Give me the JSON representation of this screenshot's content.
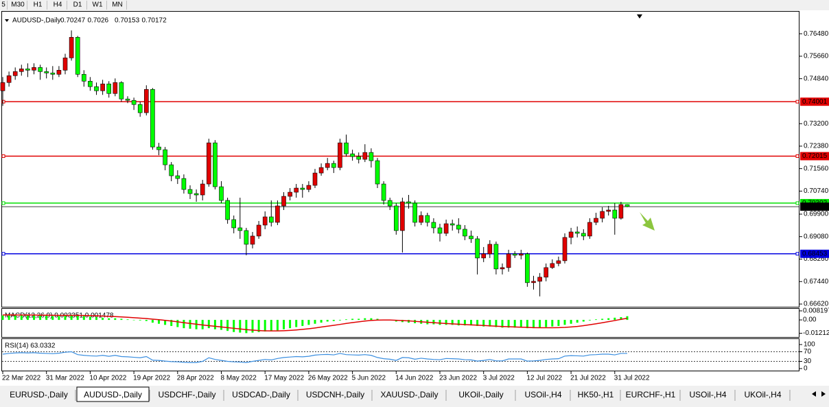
{
  "chart_data": {
    "type": "candlestick",
    "toolbar": [
      "5",
      "M30",
      "H1",
      "H4",
      "D1",
      "W1",
      "MN"
    ],
    "symbol": "AUDUSD-,Daily",
    "up_color": "#e00000",
    "down_color": "#00ff00",
    "ylim": [
      0.6652,
      0.7721
    ],
    "yticks": [
      {
        "value": 0.7648,
        "label": "0.76480"
      },
      {
        "value": 0.7566,
        "label": "0.75660"
      },
      {
        "value": 0.7484,
        "label": "0.74840"
      },
      {
        "value": 0.732,
        "label": "0.73200"
      },
      {
        "value": 0.7238,
        "label": "0.72380"
      },
      {
        "value": 0.7156,
        "label": "0.71560"
      },
      {
        "value": 0.7074,
        "label": "0.70740"
      },
      {
        "value": 0.699,
        "label": "0.69900"
      },
      {
        "value": 0.6908,
        "label": "0.69080"
      },
      {
        "value": 0.6826,
        "label": "0.68260"
      },
      {
        "value": 0.6744,
        "label": "0.67440"
      },
      {
        "value": 0.6662,
        "label": "0.66620"
      }
    ],
    "levels": [
      {
        "value": 0.74001,
        "color": "#e00000"
      },
      {
        "value": 0.72015,
        "color": "#e00000"
      },
      {
        "value": 0.70302,
        "color": "#00e000"
      },
      {
        "value": 0.68453,
        "color": "#0000e0"
      }
    ],
    "categories": [
      "22 Mar 2022",
      null,
      null,
      null,
      null,
      null,
      null,
      "31 Mar 2022",
      null,
      null,
      null,
      null,
      null,
      null,
      "10 Apr 2022",
      null,
      null,
      null,
      null,
      null,
      null,
      "19 Apr 2022",
      null,
      null,
      null,
      null,
      null,
      null,
      "28 Apr 2022",
      null,
      null,
      null,
      null,
      null,
      null,
      "8 May 2022",
      null,
      null,
      null,
      null,
      null,
      null,
      "17 May 2022",
      null,
      null,
      null,
      null,
      null,
      null,
      "26 May 2022",
      null,
      null,
      null,
      null,
      null,
      null,
      "5 Jun 2022",
      null,
      null,
      null,
      null,
      null,
      null,
      "14 Jun 2022",
      null,
      null,
      null,
      null,
      null,
      null,
      "23 Jun 2022",
      null,
      null,
      null,
      null,
      null,
      null,
      "3 Jul 2022",
      null,
      null,
      null,
      null,
      null,
      null,
      "12 Jul 2022",
      null,
      null,
      null,
      null,
      null,
      null,
      "21 Jul 2022",
      null,
      null,
      null,
      null,
      null,
      null,
      "31 Jul 2022",
      null,
      null
    ],
    "ohlc": [
      [
        0.744,
        0.749,
        0.7385,
        0.747
      ],
      [
        0.747,
        0.751,
        0.7455,
        0.7495
      ],
      [
        0.7495,
        0.7525,
        0.748,
        0.751
      ],
      [
        0.751,
        0.7535,
        0.7495,
        0.752
      ],
      [
        0.752,
        0.754,
        0.749,
        0.7515
      ],
      [
        0.7515,
        0.754,
        0.75,
        0.7525
      ],
      [
        0.7525,
        0.7535,
        0.748,
        0.751
      ],
      [
        0.751,
        0.7525,
        0.7485,
        0.7505
      ],
      [
        0.7505,
        0.753,
        0.748,
        0.75
      ],
      [
        0.75,
        0.753,
        0.749,
        0.7515
      ],
      [
        0.7515,
        0.7575,
        0.75,
        0.756
      ],
      [
        0.756,
        0.766,
        0.755,
        0.7635
      ],
      [
        0.7635,
        0.764,
        0.749,
        0.75
      ],
      [
        0.75,
        0.7515,
        0.7455,
        0.7475
      ],
      [
        0.7475,
        0.749,
        0.744,
        0.7455
      ],
      [
        0.7455,
        0.747,
        0.7425,
        0.744
      ],
      [
        0.744,
        0.748,
        0.7425,
        0.7465
      ],
      [
        0.7465,
        0.7475,
        0.7415,
        0.743
      ],
      [
        0.743,
        0.7485,
        0.742,
        0.747
      ],
      [
        0.747,
        0.7475,
        0.74,
        0.741
      ],
      [
        0.741,
        0.742,
        0.7395,
        0.7405
      ],
      [
        0.7405,
        0.7415,
        0.737,
        0.739
      ],
      [
        0.739,
        0.74,
        0.7345,
        0.736
      ],
      [
        0.736,
        0.746,
        0.735,
        0.7445
      ],
      [
        0.7445,
        0.745,
        0.7225,
        0.7235
      ],
      [
        0.7235,
        0.725,
        0.7205,
        0.7225
      ],
      [
        0.7225,
        0.7235,
        0.715,
        0.717
      ],
      [
        0.717,
        0.718,
        0.711,
        0.713
      ],
      [
        0.713,
        0.715,
        0.71,
        0.712
      ],
      [
        0.712,
        0.7135,
        0.7065,
        0.708
      ],
      [
        0.708,
        0.7095,
        0.7045,
        0.7065
      ],
      [
        0.7065,
        0.708,
        0.7035,
        0.706
      ],
      [
        0.706,
        0.7115,
        0.704,
        0.71
      ],
      [
        0.71,
        0.7265,
        0.709,
        0.725
      ],
      [
        0.725,
        0.726,
        0.708,
        0.709
      ],
      [
        0.709,
        0.711,
        0.703,
        0.704
      ],
      [
        0.704,
        0.705,
        0.6955,
        0.697
      ],
      [
        0.697,
        0.6985,
        0.692,
        0.694
      ],
      [
        0.694,
        0.705,
        0.69,
        0.693
      ],
      [
        0.693,
        0.694,
        0.684,
        0.688
      ],
      [
        0.688,
        0.6925,
        0.6865,
        0.691
      ],
      [
        0.691,
        0.6965,
        0.69,
        0.695
      ],
      [
        0.695,
        0.7,
        0.6935,
        0.698
      ],
      [
        0.698,
        0.704,
        0.6945,
        0.696
      ],
      [
        0.696,
        0.704,
        0.695,
        0.702
      ],
      [
        0.702,
        0.707,
        0.7005,
        0.7055
      ],
      [
        0.7055,
        0.7085,
        0.704,
        0.707
      ],
      [
        0.707,
        0.71,
        0.705,
        0.7085
      ],
      [
        0.7085,
        0.71,
        0.705,
        0.708
      ],
      [
        0.708,
        0.711,
        0.707,
        0.7095
      ],
      [
        0.7095,
        0.7155,
        0.7085,
        0.714
      ],
      [
        0.714,
        0.7175,
        0.713,
        0.716
      ],
      [
        0.716,
        0.7195,
        0.715,
        0.7175
      ],
      [
        0.7175,
        0.7185,
        0.714,
        0.716
      ],
      [
        0.716,
        0.7265,
        0.715,
        0.725
      ],
      [
        0.725,
        0.728,
        0.72,
        0.721
      ],
      [
        0.721,
        0.7225,
        0.7185,
        0.72
      ],
      [
        0.72,
        0.7215,
        0.7175,
        0.719
      ],
      [
        0.719,
        0.7245,
        0.718,
        0.7215
      ],
      [
        0.7215,
        0.723,
        0.716,
        0.7185
      ],
      [
        0.7185,
        0.7195,
        0.7085,
        0.71
      ],
      [
        0.71,
        0.711,
        0.7025,
        0.704
      ],
      [
        0.704,
        0.705,
        0.7005,
        0.702
      ],
      [
        0.702,
        0.703,
        0.6915,
        0.693
      ],
      [
        0.693,
        0.705,
        0.685,
        0.7035
      ],
      [
        0.7035,
        0.706,
        0.701,
        0.703
      ],
      [
        0.703,
        0.704,
        0.6945,
        0.696
      ],
      [
        0.696,
        0.7,
        0.695,
        0.6985
      ],
      [
        0.6985,
        0.6995,
        0.6945,
        0.696
      ],
      [
        0.696,
        0.6975,
        0.692,
        0.694
      ],
      [
        0.694,
        0.6955,
        0.689,
        0.692
      ],
      [
        0.692,
        0.697,
        0.691,
        0.6955
      ],
      [
        0.6955,
        0.697,
        0.693,
        0.695
      ],
      [
        0.695,
        0.6975,
        0.692,
        0.6935
      ],
      [
        0.6935,
        0.695,
        0.6895,
        0.691
      ],
      [
        0.691,
        0.693,
        0.6885,
        0.69
      ],
      [
        0.69,
        0.691,
        0.677,
        0.683
      ],
      [
        0.683,
        0.687,
        0.6815,
        0.6845
      ],
      [
        0.6845,
        0.6895,
        0.683,
        0.688
      ],
      [
        0.688,
        0.689,
        0.677,
        0.679
      ],
      [
        0.679,
        0.681,
        0.677,
        0.6795
      ],
      [
        0.6795,
        0.686,
        0.678,
        0.6845
      ],
      [
        0.6845,
        0.6855,
        0.683,
        0.684
      ],
      [
        0.684,
        0.686,
        0.6825,
        0.6845
      ],
      [
        0.6845,
        0.685,
        0.6725,
        0.674
      ],
      [
        0.674,
        0.6765,
        0.6715,
        0.6745
      ],
      [
        0.6745,
        0.6775,
        0.669,
        0.676
      ],
      [
        0.676,
        0.681,
        0.6745,
        0.6795
      ],
      [
        0.6795,
        0.6825,
        0.679,
        0.681
      ],
      [
        0.681,
        0.6835,
        0.68,
        0.682
      ],
      [
        0.682,
        0.692,
        0.681,
        0.6905
      ],
      [
        0.6905,
        0.694,
        0.688,
        0.6925
      ],
      [
        0.6925,
        0.6945,
        0.6905,
        0.692
      ],
      [
        0.692,
        0.6935,
        0.6895,
        0.691
      ],
      [
        0.691,
        0.6975,
        0.69,
        0.696
      ],
      [
        0.696,
        0.6995,
        0.695,
        0.6975
      ],
      [
        0.6975,
        0.7015,
        0.696,
        0.7
      ],
      [
        0.7,
        0.702,
        0.6985,
        0.7005
      ],
      [
        0.7005,
        0.703,
        0.6915,
        0.6975
      ],
      [
        0.6975,
        0.7035,
        0.697,
        0.7025
      ],
      [
        0.70247,
        0.7026,
        0.70153,
        0.70172
      ]
    ],
    "macd": {
      "label": "MACD(12,26,9) 0.003351 0.001478",
      "hist_color": "#00ff00",
      "signal_color": "#e00000",
      "ylim": [
        -0.0155,
        0.0094
      ],
      "yticks": [
        0.008197,
        {
          "value": 0,
          "label": "0.00"
        },
        -0.012121
      ],
      "hist": [
        0.004,
        0.004,
        0.0045,
        0.0045,
        0.0045,
        0.0045,
        0.004,
        0.004,
        0.0035,
        0.0035,
        0.004,
        0.0045,
        0.004,
        0.0035,
        0.003,
        0.0025,
        0.002,
        0.0015,
        0.0015,
        0.001,
        0.0005,
        0,
        -0.0005,
        -0.001,
        -0.0025,
        -0.0035,
        -0.0045,
        -0.0055,
        -0.0065,
        -0.0075,
        -0.008,
        -0.0085,
        -0.0085,
        -0.0075,
        -0.0085,
        -0.009,
        -0.01,
        -0.011,
        -0.0115,
        -0.012,
        -0.0115,
        -0.011,
        -0.0105,
        -0.01,
        -0.0095,
        -0.0085,
        -0.0075,
        -0.0065,
        -0.0055,
        -0.0045,
        -0.0035,
        -0.0025,
        -0.0015,
        -0.001,
        -0.0005,
        0.0005,
        0.001,
        0.001,
        0.0015,
        0.0015,
        0.001,
        0,
        -0.0005,
        -0.0015,
        -0.002,
        -0.0025,
        -0.003,
        -0.0035,
        -0.004,
        -0.004,
        -0.0045,
        -0.0045,
        -0.0045,
        -0.005,
        -0.005,
        -0.005,
        -0.0055,
        -0.006,
        -0.006,
        -0.0065,
        -0.007,
        -0.007,
        -0.007,
        -0.007,
        -0.0075,
        -0.0075,
        -0.007,
        -0.0065,
        -0.006,
        -0.0055,
        -0.0045,
        -0.0035,
        -0.0025,
        -0.0015,
        -0.0005,
        0.0005,
        0.001,
        0.0015,
        0.002,
        0.0025,
        0.003351
      ],
      "signal": [
        0.0045,
        0.0045,
        0.0044,
        0.0044,
        0.0044,
        0.0044,
        0.0043,
        0.0043,
        0.0042,
        0.0041,
        0.0041,
        0.0041,
        0.0041,
        0.004,
        0.0039,
        0.0037,
        0.0035,
        0.0032,
        0.003,
        0.0027,
        0.0024,
        0.002,
        0.0016,
        0.0012,
        0.0007,
        0.0002,
        -0.0004,
        -0.001,
        -0.0017,
        -0.0025,
        -0.0032,
        -0.0039,
        -0.0046,
        -0.0052,
        -0.0058,
        -0.0064,
        -0.007,
        -0.0076,
        -0.0082,
        -0.0088,
        -0.0093,
        -0.0097,
        -0.0099,
        -0.01,
        -0.01,
        -0.0098,
        -0.0095,
        -0.0091,
        -0.0086,
        -0.008,
        -0.0073,
        -0.0065,
        -0.0057,
        -0.0049,
        -0.0041,
        -0.0032,
        -0.0024,
        -0.0017,
        -0.001,
        -0.0005,
        -0.0002,
        -0.0001,
        -0.0001,
        -0.0003,
        -0.0006,
        -0.0009,
        -0.0013,
        -0.0017,
        -0.0021,
        -0.0025,
        -0.0029,
        -0.0033,
        -0.0036,
        -0.0039,
        -0.0042,
        -0.0045,
        -0.0048,
        -0.0051,
        -0.0054,
        -0.0057,
        -0.006,
        -0.0062,
        -0.0064,
        -0.0066,
        -0.0068,
        -0.007,
        -0.0071,
        -0.0071,
        -0.0071,
        -0.007,
        -0.0068,
        -0.0064,
        -0.0059,
        -0.0052,
        -0.0044,
        -0.0035,
        -0.0026,
        -0.0016,
        -0.0006,
        0.0005,
        0.001478
      ]
    },
    "rsi": {
      "label": "RSI(14) 63.0332",
      "color": "#3a8ee0",
      "ylim": [
        0,
        100
      ],
      "yticks": [
        100,
        70,
        30,
        0
      ],
      "levels": [
        70,
        30
      ],
      "values": [
        60,
        63,
        65,
        66,
        65,
        66,
        64,
        63,
        62,
        64,
        68,
        70,
        58,
        55,
        53,
        52,
        55,
        51,
        55,
        50,
        49,
        47,
        45,
        50,
        35,
        34,
        31,
        29,
        28,
        26,
        25,
        25,
        30,
        45,
        38,
        34,
        30,
        28,
        27,
        25,
        30,
        34,
        38,
        36,
        42,
        46,
        48,
        50,
        49,
        51,
        56,
        58,
        59,
        57,
        63,
        58,
        57,
        56,
        58,
        55,
        46,
        41,
        39,
        34,
        46,
        45,
        39,
        43,
        40,
        38,
        37,
        42,
        41,
        40,
        37,
        36,
        31,
        34,
        38,
        32,
        32,
        40,
        40,
        40,
        31,
        32,
        34,
        38,
        40,
        41,
        52,
        54,
        53,
        52,
        57,
        58,
        60,
        60,
        57,
        63,
        63.0332
      ]
    },
    "tabs": [
      "EURUSD-,Daily",
      "AUDUSD-,Daily",
      "USDCHF-,Daily",
      "USDCAD-,Daily",
      "USDCNH-,Daily",
      "XAUUSD-,Daily",
      "UKOil-,Daily",
      "USOil-,H4",
      "HK50-,H1",
      "EURCHF-,H1",
      "USOil-,H4",
      "UKOil-,H4"
    ],
    "active_tab": 1
  }
}
